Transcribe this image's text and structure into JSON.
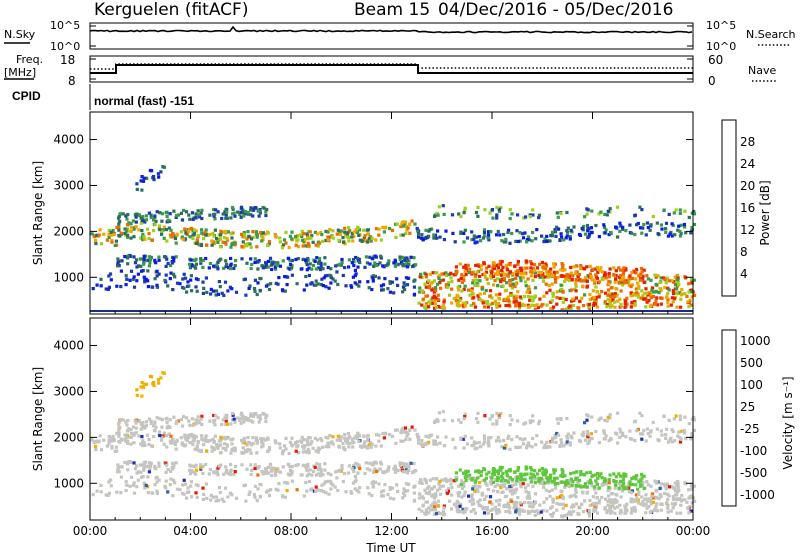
{
  "header": {
    "station": "Kerguelen (fitACF)",
    "beam": "Beam 15",
    "date_range": "04/Dec/2016 - 05/Dec/2016"
  },
  "strips": {
    "nsky_label": "N.Sky",
    "nsearch_label": "N.Search",
    "freq_label_1": "Freq.",
    "freq_label_2": "[MHz]",
    "nave_label": "Nave",
    "cpid_label": "CPID",
    "cpid_text": "normal (fast) -151",
    "noise_ticks": [
      "10^5",
      "10^0"
    ],
    "freq_ticks": [
      "18",
      "8"
    ],
    "nave_ticks": [
      "60",
      "0"
    ]
  },
  "colors": {
    "background": "#ffffff",
    "axis": "#000000",
    "ground_line": "#1c2a8c"
  },
  "chart_data": [
    {
      "type": "heatmap",
      "title": "",
      "xlabel": "",
      "ylabel": "Slant Range [km]",
      "xlim": [
        "00:00",
        "00:00"
      ],
      "ylim": [
        200,
        4600
      ],
      "x_ticks": [
        "00:00",
        "04:00",
        "08:00",
        "12:00",
        "16:00",
        "20:00",
        "00:00"
      ],
      "y_ticks": [
        "1000",
        "2000",
        "3000",
        "4000"
      ],
      "colorbar": {
        "label": "Power [dB]",
        "ticks": [
          "4",
          "8",
          "12",
          "16",
          "20",
          "24",
          "28"
        ],
        "colors": [
          "#0a1be6",
          "#1c3da8",
          "#2c6f5e",
          "#3a9a4c",
          "#9ed01a",
          "#f0a800",
          "#f06a00",
          "#e81e00"
        ]
      }
    },
    {
      "type": "heatmap",
      "title": "",
      "xlabel": "Time UT",
      "ylabel": "Slant Range [km]",
      "xlim": [
        "00:00",
        "00:00"
      ],
      "ylim": [
        200,
        4600
      ],
      "x_ticks": [
        "00:00",
        "04:00",
        "08:00",
        "12:00",
        "16:00",
        "20:00",
        "00:00"
      ],
      "y_ticks": [
        "1000",
        "2000",
        "3000",
        "4000"
      ],
      "colorbar": {
        "label": "Velocity [m s⁻¹]",
        "ticks": [
          "1000",
          "500",
          "100",
          "25",
          "-25",
          "-100",
          "-500",
          "-1000"
        ],
        "colors": [
          "#1d2fb8",
          "#2d60a8",
          "#2e8a4a",
          "#5cc83a",
          "#c4c4c0",
          "#f0b000",
          "#f07000",
          "#e81800"
        ]
      }
    }
  ]
}
